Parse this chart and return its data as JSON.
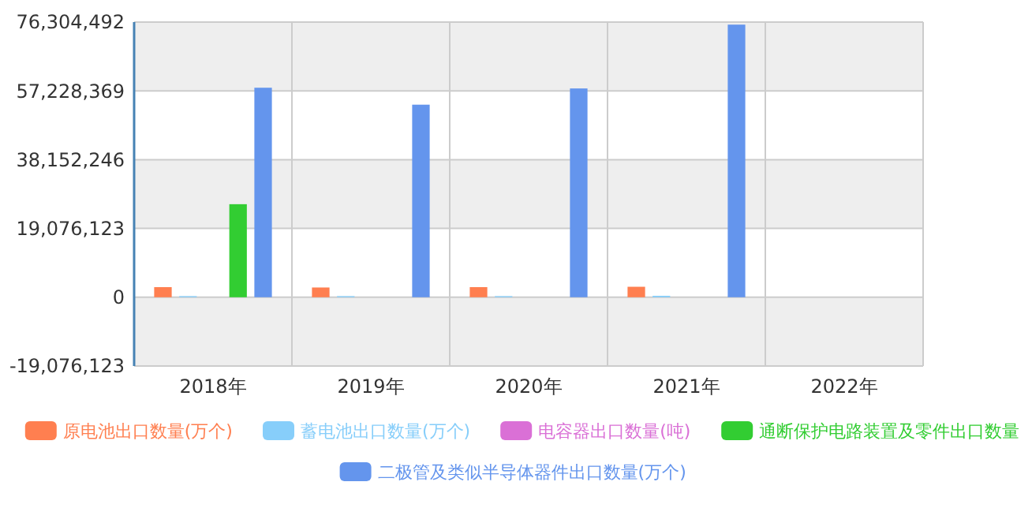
{
  "chart_data": {
    "type": "bar",
    "categories": [
      "2018年",
      "2019年",
      "2020年",
      "2021年",
      "2022年"
    ],
    "series": [
      {
        "name": "原电池出口数量(万个)",
        "color": "#ff7f50",
        "values": [
          2800000,
          2700000,
          2800000,
          2900000,
          null
        ]
      },
      {
        "name": "蓄电池出口数量(万个)",
        "color": "#87cefa",
        "values": [
          300000,
          300000,
          300000,
          400000,
          null
        ]
      },
      {
        "name": "电容器出口数量(吨)",
        "color": "#da70d6",
        "values": [
          0,
          0,
          0,
          0,
          null
        ]
      },
      {
        "name": "通断保护电路装置及零件出口数量",
        "color": "#32cd32",
        "values": [
          25800000,
          0,
          0,
          0,
          null
        ]
      },
      {
        "name": "二极管及类似半导体器件出口数量(万个)",
        "color": "#6495ed",
        "values": [
          58100000,
          53400000,
          57900000,
          75600000,
          null
        ]
      }
    ],
    "ylim": [
      -19076123,
      76304492
    ],
    "yticks": [
      {
        "value": -19076123,
        "label": "-19,076,123"
      },
      0,
      {
        "value": 19076123,
        "label": "19,076,123"
      },
      {
        "value": 38152246,
        "label": "38,152,246"
      },
      {
        "value": 57228369,
        "label": "57,228,369"
      },
      {
        "value": 76304492,
        "label": "76,304,492"
      }
    ],
    "grid": true,
    "legend": "bottom"
  }
}
